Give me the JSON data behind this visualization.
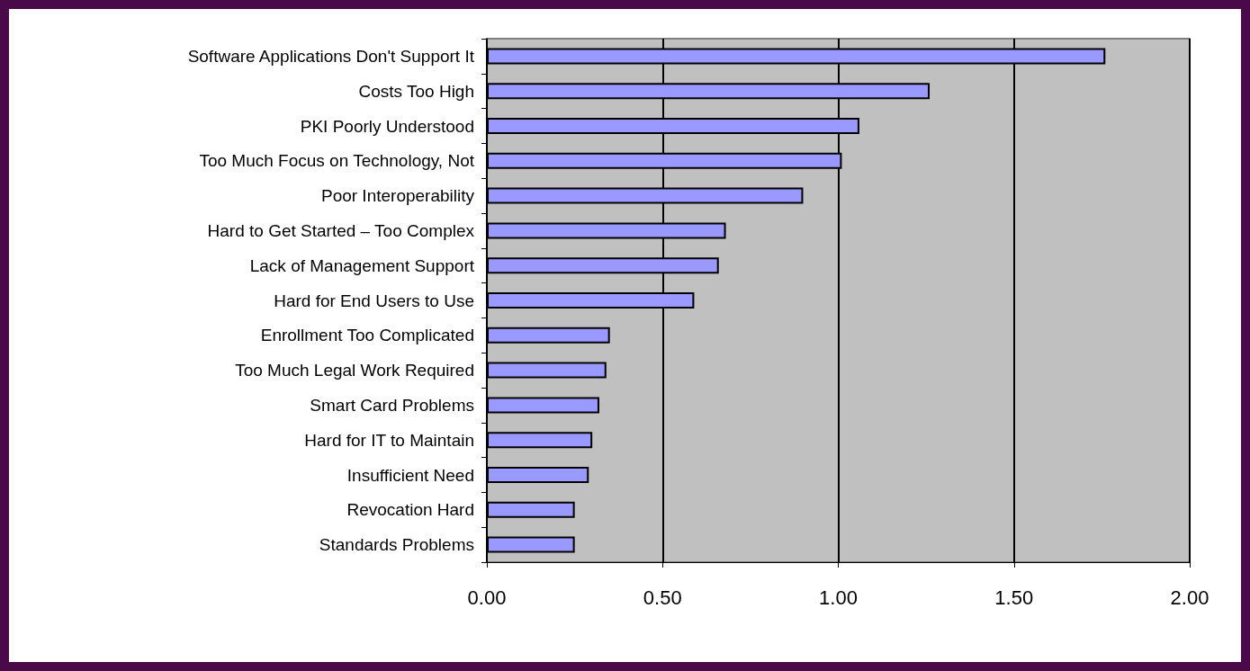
{
  "chart_data": {
    "type": "bar",
    "orientation": "horizontal",
    "categories": [
      "Software Applications Don't Support It",
      "Costs Too High",
      "PKI Poorly Understood",
      "Too Much Focus on Technology, Not",
      "Poor Interoperability",
      "Hard to Get Started – Too Complex",
      "Lack of Management Support",
      "Hard for End Users to Use",
      "Enrollment Too Complicated",
      "Too Much Legal Work Required",
      "Smart Card Problems",
      "Hard for IT to Maintain",
      "Insufficient Need",
      "Revocation Hard",
      "Standards Problems"
    ],
    "values": [
      1.76,
      1.26,
      1.06,
      1.01,
      0.9,
      0.68,
      0.66,
      0.59,
      0.35,
      0.34,
      0.32,
      0.3,
      0.29,
      0.25,
      0.25
    ],
    "color": "#9999ff",
    "xlim": [
      0,
      2
    ],
    "xticks": [
      {
        "value": 0,
        "label": "0.00"
      },
      {
        "value": 0.5,
        "label": "0.50"
      },
      {
        "value": 1,
        "label": "1.00"
      },
      {
        "value": 1.5,
        "label": "1.50"
      },
      {
        "value": 2,
        "label": "2.00"
      }
    ],
    "grid": "x"
  }
}
